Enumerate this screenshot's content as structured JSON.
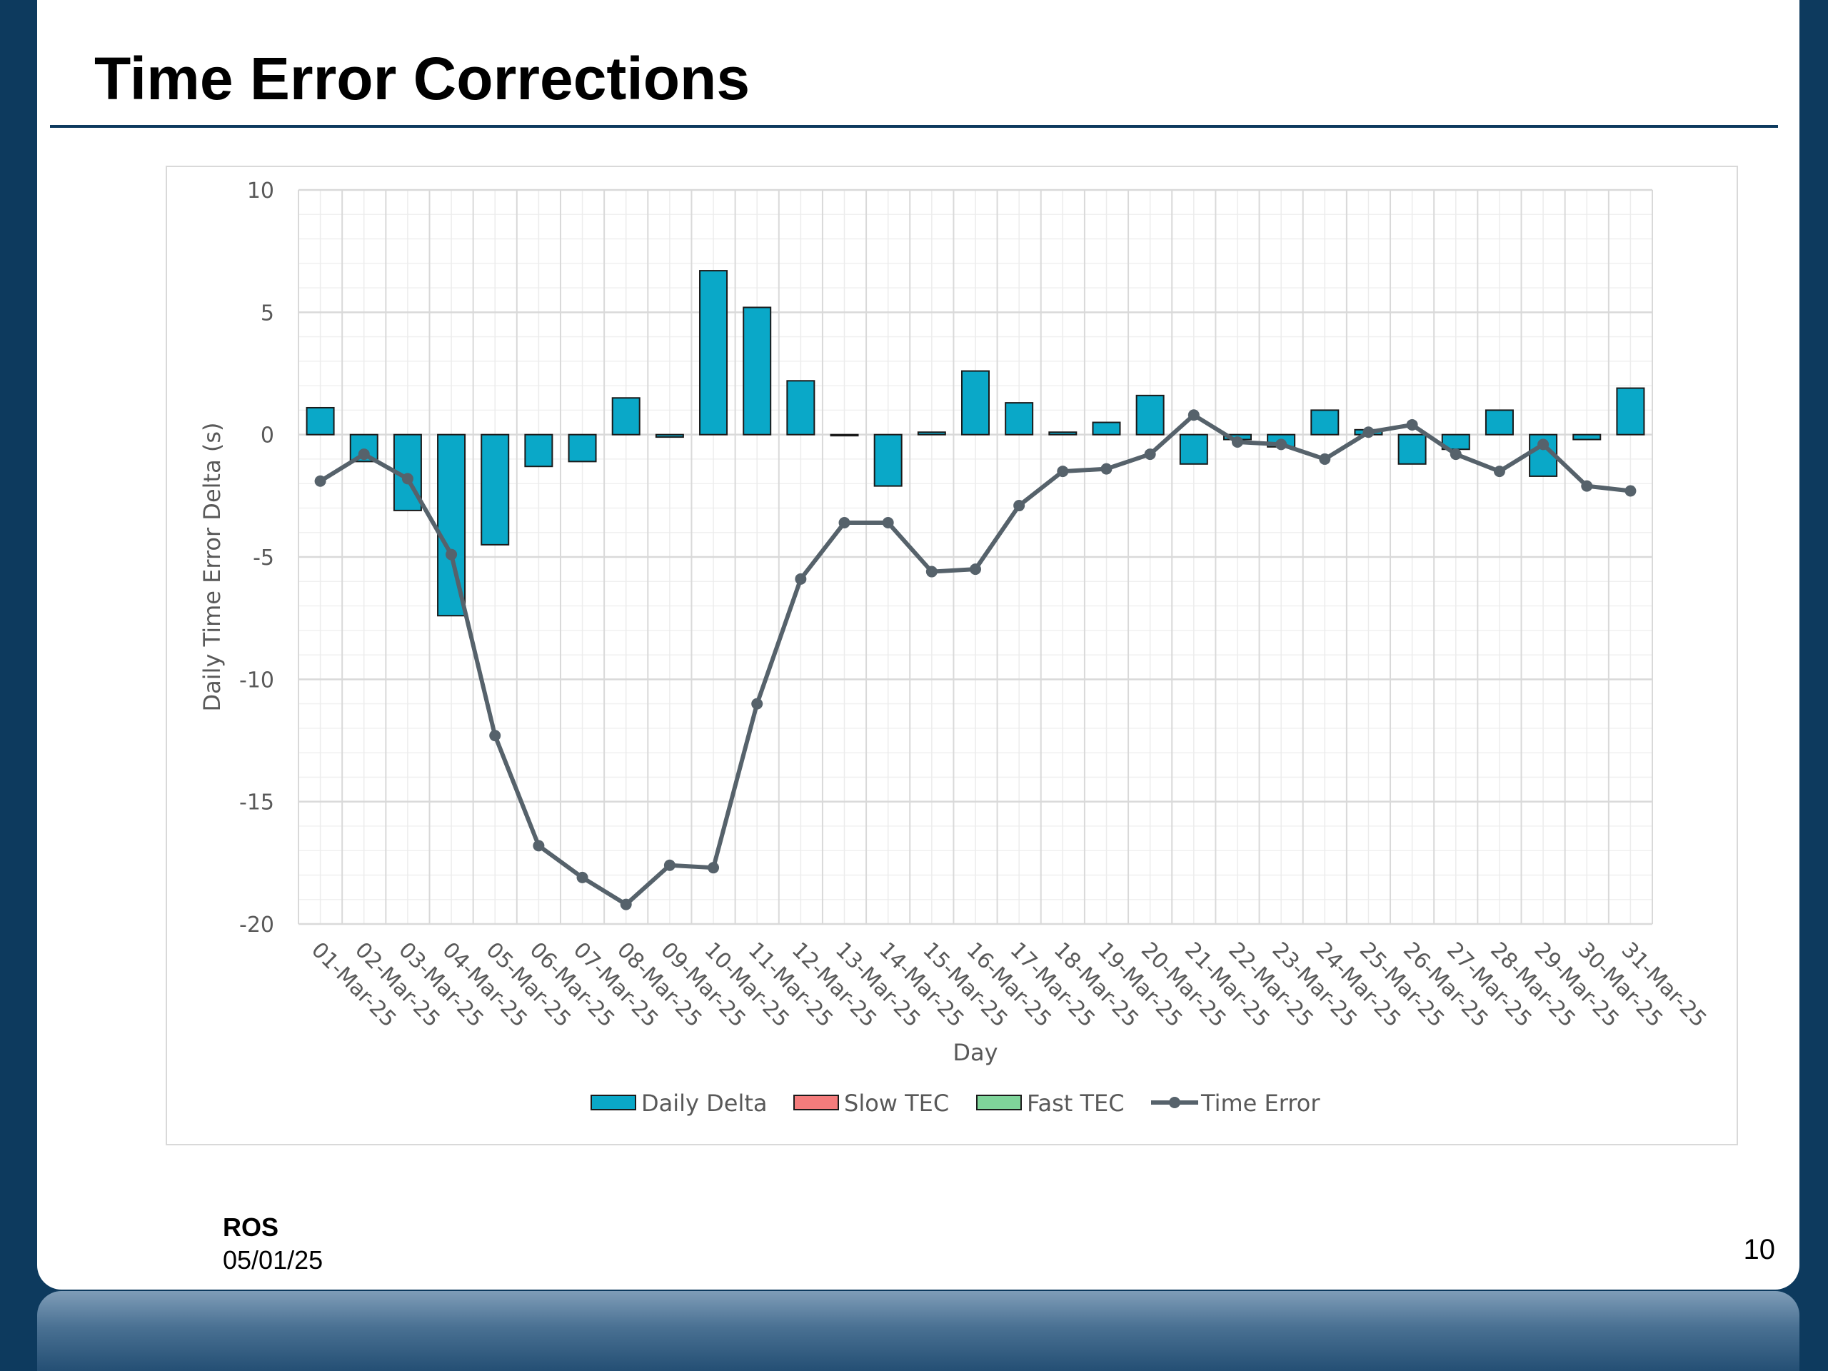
{
  "slide": {
    "title": "Time Error Corrections",
    "footer_org": "ROS",
    "footer_date": "05/01/25",
    "page_number": "10"
  },
  "colors": {
    "background": "#0d3a5e",
    "daily_delta": "#0aa8c8",
    "slow_tec": "#f47c7c",
    "fast_tec": "#7fd49a",
    "time_error": "#56626b",
    "grid": "#d9d9d9"
  },
  "chart_data": {
    "type": "bar",
    "xlabel": "Day",
    "ylabel": "Daily Time Error Delta (s)",
    "ylim": [
      -20,
      10
    ],
    "yticks": [
      10,
      5,
      0,
      -5,
      -10,
      -15,
      -20
    ],
    "grid": true,
    "legend_position": "bottom",
    "categories": [
      "01-Mar-25",
      "02-Mar-25",
      "03-Mar-25",
      "04-Mar-25",
      "05-Mar-25",
      "06-Mar-25",
      "07-Mar-25",
      "08-Mar-25",
      "09-Mar-25",
      "10-Mar-25",
      "11-Mar-25",
      "12-Mar-25",
      "13-Mar-25",
      "14-Mar-25",
      "15-Mar-25",
      "16-Mar-25",
      "17-Mar-25",
      "18-Mar-25",
      "19-Mar-25",
      "20-Mar-25",
      "21-Mar-25",
      "22-Mar-25",
      "23-Mar-25",
      "24-Mar-25",
      "25-Mar-25",
      "26-Mar-25",
      "27-Mar-25",
      "28-Mar-25",
      "29-Mar-25",
      "30-Mar-25",
      "31-Mar-25"
    ],
    "series": [
      {
        "name": "Daily Delta",
        "type": "bar",
        "values": [
          1.1,
          -1.1,
          -3.1,
          -7.4,
          -4.5,
          -1.3,
          -1.1,
          1.5,
          -0.1,
          6.7,
          5.2,
          2.2,
          0.0,
          -2.1,
          0.1,
          2.6,
          1.3,
          0.1,
          0.5,
          1.6,
          -1.2,
          -0.2,
          -0.5,
          1.0,
          0.2,
          -1.2,
          -0.6,
          1.0,
          -1.7,
          -0.2,
          1.9
        ]
      },
      {
        "name": "Slow TEC",
        "type": "bar",
        "values": [
          0,
          0,
          0,
          0,
          0,
          0,
          0,
          0,
          0,
          0,
          0,
          0,
          0,
          0,
          0,
          0,
          0,
          0,
          0,
          0,
          0,
          0,
          0,
          0,
          0,
          0,
          0,
          0,
          0,
          0,
          0
        ]
      },
      {
        "name": "Fast TEC",
        "type": "bar",
        "values": [
          0,
          0,
          0,
          0,
          0,
          0,
          0,
          0,
          0,
          0,
          0,
          0,
          0,
          0,
          0,
          0,
          0,
          0,
          0,
          0,
          0,
          0,
          0,
          0,
          0,
          0,
          0,
          0,
          0,
          0,
          0
        ]
      },
      {
        "name": "Time Error",
        "type": "line",
        "values": [
          -1.9,
          -0.8,
          -1.8,
          -4.9,
          -12.3,
          -16.8,
          -18.1,
          -19.2,
          -17.6,
          -17.7,
          -11.0,
          -5.9,
          -3.6,
          -3.6,
          -5.6,
          -5.5,
          -2.9,
          -1.5,
          -1.4,
          -0.8,
          0.8,
          -0.3,
          -0.4,
          -1.0,
          0.1,
          0.4,
          -0.8,
          -1.5,
          -0.4,
          -2.1,
          -2.3
        ]
      }
    ]
  }
}
